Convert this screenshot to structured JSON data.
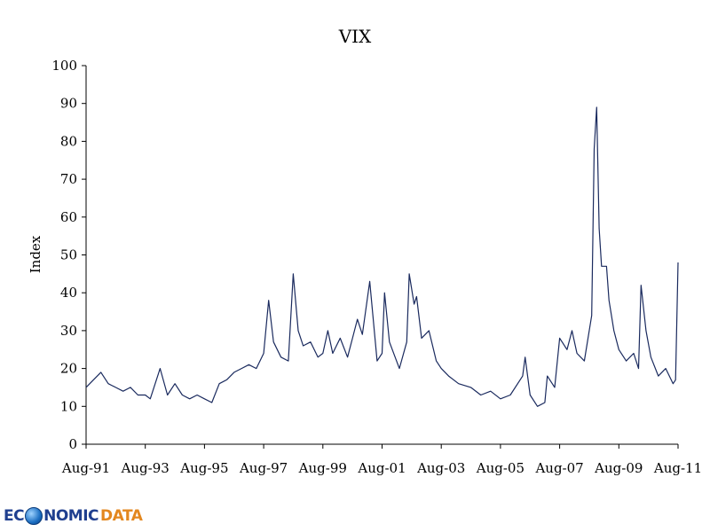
{
  "chart_data": {
    "type": "line",
    "title": "VIX",
    "xlabel": "",
    "ylabel": "Index",
    "ylim": [
      0,
      100
    ],
    "yticks": [
      0,
      10,
      20,
      30,
      40,
      50,
      60,
      70,
      80,
      90,
      100
    ],
    "xticks": [
      "Aug-91",
      "Aug-93",
      "Aug-95",
      "Aug-97",
      "Aug-99",
      "Aug-01",
      "Aug-03",
      "Aug-05",
      "Aug-07",
      "Aug-09",
      "Aug-11"
    ],
    "xlim": [
      "Aug-91",
      "Aug-11"
    ],
    "grid": false,
    "legend": "none",
    "series": [
      {
        "color": "#1a2a5e",
        "x": [
          "Aug-91",
          "Nov-91",
          "Feb-92",
          "May-92",
          "Aug-92",
          "Nov-92",
          "Feb-93",
          "May-93",
          "Aug-93",
          "Oct-93",
          "Feb-94",
          "May-94",
          "Aug-94",
          "Nov-94",
          "Feb-95",
          "May-95",
          "Aug-95",
          "Nov-95",
          "Feb-96",
          "May-96",
          "Aug-96",
          "Nov-96",
          "Feb-97",
          "May-97",
          "Aug-97",
          "Oct-97",
          "Dec-97",
          "Mar-98",
          "Jun-98",
          "Aug-98",
          "Oct-98",
          "Dec-98",
          "Mar-99",
          "Jun-99",
          "Aug-99",
          "Oct-99",
          "Dec-99",
          "Mar-00",
          "Jun-00",
          "Aug-00",
          "Oct-00",
          "Dec-00",
          "Mar-01",
          "Jun-01",
          "Aug-01",
          "Sep-01",
          "Nov-01",
          "Mar-02",
          "Jun-02",
          "Jul-02",
          "Sep-02",
          "Oct-02",
          "Dec-02",
          "Mar-03",
          "Jun-03",
          "Aug-03",
          "Nov-03",
          "Mar-04",
          "Aug-04",
          "Dec-04",
          "Apr-05",
          "Aug-05",
          "Dec-05",
          "May-06",
          "Jun-06",
          "Aug-06",
          "Nov-06",
          "Feb-07",
          "Mar-07",
          "Jun-07",
          "Aug-07",
          "Nov-07",
          "Jan-08",
          "Mar-08",
          "Jun-08",
          "Sep-08",
          "Oct-08",
          "Nov-08",
          "Dec-08",
          "Jan-09",
          "Mar-09",
          "Apr-09",
          "Jun-09",
          "Aug-09",
          "Nov-09",
          "Feb-10",
          "Apr-10",
          "May-10",
          "Jul-10",
          "Sep-10",
          "Dec-10",
          "Mar-11",
          "Jun-11",
          "Jul-11",
          "Aug-11"
        ],
        "values": [
          15,
          17,
          19,
          16,
          15,
          14,
          15,
          13,
          13,
          12,
          20,
          13,
          16,
          13,
          12,
          13,
          12,
          11,
          16,
          17,
          19,
          20,
          21,
          20,
          24,
          38,
          27,
          23,
          22,
          45,
          30,
          26,
          27,
          23,
          24,
          30,
          24,
          28,
          23,
          28,
          33,
          29,
          43,
          22,
          24,
          40,
          27,
          20,
          27,
          45,
          37,
          39,
          28,
          30,
          22,
          20,
          18,
          16,
          15,
          13,
          14,
          12,
          13,
          18,
          23,
          13,
          10,
          11,
          18,
          15,
          28,
          25,
          30,
          24,
          22,
          34,
          78,
          89,
          57,
          47,
          47,
          38,
          30,
          25,
          22,
          24,
          20,
          42,
          30,
          23,
          18,
          20,
          16,
          17,
          48
        ]
      }
    ]
  },
  "brand": {
    "logo_text_a": "EC",
    "logo_text_b": "NOMIC",
    "logo_text_c": "DATA"
  }
}
